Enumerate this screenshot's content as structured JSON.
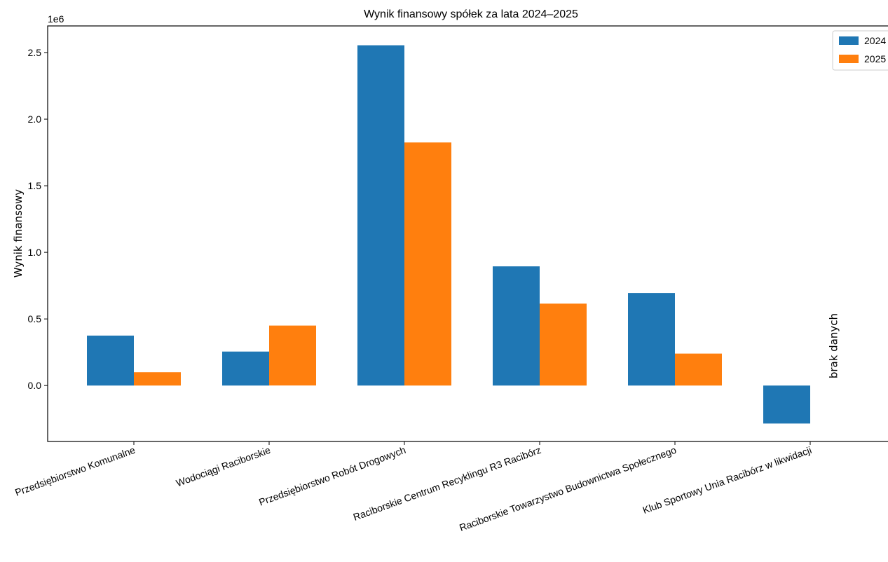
{
  "chart_data": {
    "type": "bar",
    "title": "Wynik finansowy spółek za lata 2024–2025",
    "ylabel": "Wynik finansowy",
    "xlabel": "",
    "offset_label": "1e6",
    "ylim": [
      -420000,
      2700000
    ],
    "yticks": [
      0.0,
      0.5,
      1.0,
      1.5,
      2.0,
      2.5
    ],
    "ytick_labels": [
      "0.0",
      "0.5",
      "1.0",
      "1.5",
      "2.0",
      "2.5"
    ],
    "grid": false,
    "legend_position": "top-right",
    "categories": [
      "Przedsiębiorstwo Komunalne",
      "Wodociągi Raciborskie",
      "Przedsiębiorstwo Robót Drogowych",
      "Raciborskie Centrum Recyklingu R3 Racibórz",
      "Raciborskie Towarzystwo Budownictwa Społecznego",
      "Klub Sportowy Unia Racibórz w likwidacji"
    ],
    "series": [
      {
        "name": "2024",
        "color": "#1f77b4",
        "values": [
          375000,
          255000,
          2555000,
          895000,
          695000,
          -285000
        ]
      },
      {
        "name": "2025",
        "color": "#ff7f0e",
        "values": [
          100000,
          450000,
          1825000,
          615000,
          240000,
          null
        ]
      }
    ],
    "annotations": [
      {
        "text": "brak danych",
        "category_index": 5,
        "series_index": 1
      }
    ]
  }
}
